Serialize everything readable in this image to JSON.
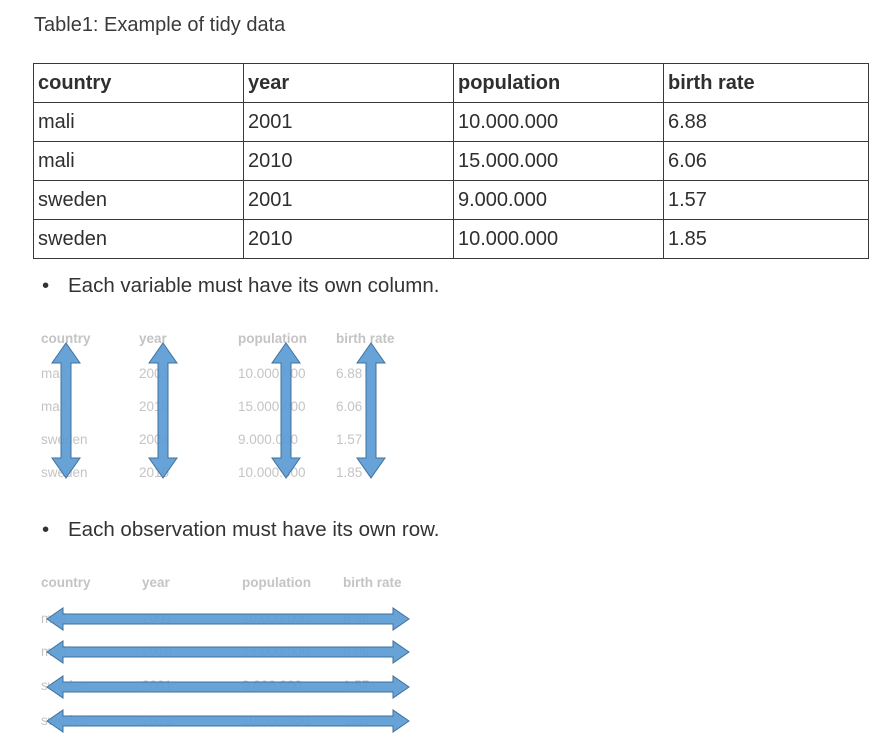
{
  "caption": "Table1: Example of tidy data",
  "table": {
    "headers": [
      "country",
      "year",
      "population",
      "birth rate"
    ],
    "rows": [
      [
        "mali",
        "2001",
        "10.000.000",
        "6.88"
      ],
      [
        "mali",
        "2010",
        "15.000.000",
        "6.06"
      ],
      [
        "sweden",
        "2001",
        "9.000.000",
        "1.57"
      ],
      [
        "sweden",
        "2010",
        "10.000.000",
        "1.85"
      ]
    ]
  },
  "bullets": {
    "bullet1": "Each variable must have its own column.",
    "bullet2": "Each observation must have its own row.",
    "marker": "•"
  },
  "colors": {
    "arrow_fill": "#5b9bd5",
    "arrow_stroke": "#41719c",
    "faded_text": "#c4c4c4"
  }
}
